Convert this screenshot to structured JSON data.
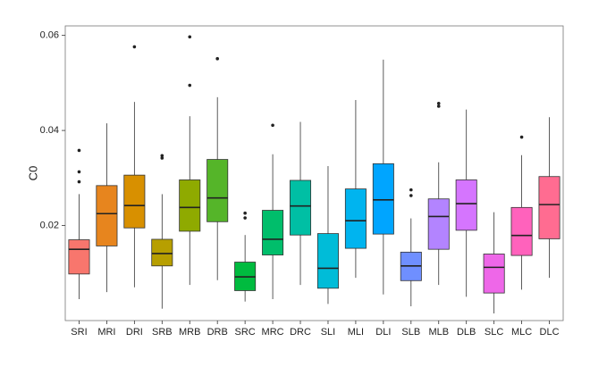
{
  "chart_data": {
    "type": "boxplot",
    "title": "",
    "xlabel": "",
    "ylabel": "C0",
    "ylim": [
      0.0,
      0.062
    ],
    "yticks": [
      0.02,
      0.04,
      0.06
    ],
    "ytick_labels": [
      "0.02",
      "0.04",
      "0.06"
    ],
    "grid": false,
    "legend": "none",
    "categories": [
      "SRI",
      "MRI",
      "DRI",
      "SRB",
      "MRB",
      "DRB",
      "SRC",
      "MRC",
      "DRC",
      "SLI",
      "MLI",
      "DLI",
      "SLB",
      "MLB",
      "DLB",
      "SLC",
      "MLC",
      "DLC"
    ],
    "colors": [
      "#F8766D",
      "#E7851E",
      "#D89000",
      "#B79F00",
      "#8FAA00",
      "#55B529",
      "#00BB3F",
      "#00BE6B",
      "#00BFA4",
      "#00BCD8",
      "#00B4EF",
      "#00A5FF",
      "#6F8FFF",
      "#B384FF",
      "#D575FE",
      "#EE67E8",
      "#FF62BC",
      "#FF6C91"
    ],
    "boxes": [
      {
        "min": 0.0045,
        "q1": 0.0098,
        "median": 0.015,
        "q3": 0.017,
        "max": 0.0266,
        "outliers": [
          0.0292,
          0.0313,
          0.0358
        ]
      },
      {
        "min": 0.006,
        "q1": 0.0157,
        "median": 0.0225,
        "q3": 0.0284,
        "max": 0.0415,
        "outliers": []
      },
      {
        "min": 0.007,
        "q1": 0.0195,
        "median": 0.0242,
        "q3": 0.0306,
        "max": 0.046,
        "outliers": [
          0.0576
        ]
      },
      {
        "min": 0.0025,
        "q1": 0.0115,
        "median": 0.0141,
        "q3": 0.0171,
        "max": 0.0266,
        "outliers": [
          0.0342,
          0.0347
        ]
      },
      {
        "min": 0.0075,
        "q1": 0.0188,
        "median": 0.0238,
        "q3": 0.0296,
        "max": 0.043,
        "outliers": [
          0.0495,
          0.0597
        ]
      },
      {
        "min": 0.0085,
        "q1": 0.0208,
        "median": 0.0258,
        "q3": 0.0339,
        "max": 0.047,
        "outliers": [
          0.0551
        ]
      },
      {
        "min": 0.004,
        "q1": 0.0063,
        "median": 0.0092,
        "q3": 0.0123,
        "max": 0.018,
        "outliers": [
          0.0216,
          0.0226
        ]
      },
      {
        "min": 0.0045,
        "q1": 0.0138,
        "median": 0.0171,
        "q3": 0.0232,
        "max": 0.035,
        "outliers": [
          0.0411
        ]
      },
      {
        "min": 0.0075,
        "q1": 0.018,
        "median": 0.0241,
        "q3": 0.0295,
        "max": 0.0418,
        "outliers": []
      },
      {
        "min": 0.0035,
        "q1": 0.0068,
        "median": 0.011,
        "q3": 0.0183,
        "max": 0.0325,
        "outliers": []
      },
      {
        "min": 0.009,
        "q1": 0.0152,
        "median": 0.021,
        "q3": 0.0277,
        "max": 0.0464,
        "outliers": []
      },
      {
        "min": 0.0055,
        "q1": 0.0182,
        "median": 0.0254,
        "q3": 0.033,
        "max": 0.0549,
        "outliers": []
      },
      {
        "min": 0.003,
        "q1": 0.0084,
        "median": 0.0115,
        "q3": 0.0144,
        "max": 0.0215,
        "outliers": [
          0.0263,
          0.0275
        ]
      },
      {
        "min": 0.0075,
        "q1": 0.015,
        "median": 0.0219,
        "q3": 0.0256,
        "max": 0.0333,
        "outliers": [
          0.0451,
          0.0457
        ]
      },
      {
        "min": 0.005,
        "q1": 0.019,
        "median": 0.0246,
        "q3": 0.0296,
        "max": 0.0444,
        "outliers": []
      },
      {
        "min": 0.0015,
        "q1": 0.0058,
        "median": 0.0112,
        "q3": 0.014,
        "max": 0.0228,
        "outliers": []
      },
      {
        "min": 0.0065,
        "q1": 0.0137,
        "median": 0.0179,
        "q3": 0.0238,
        "max": 0.0348,
        "outliers": [
          0.0386
        ]
      },
      {
        "min": 0.009,
        "q1": 0.0172,
        "median": 0.0244,
        "q3": 0.0303,
        "max": 0.0428,
        "outliers": []
      }
    ]
  }
}
